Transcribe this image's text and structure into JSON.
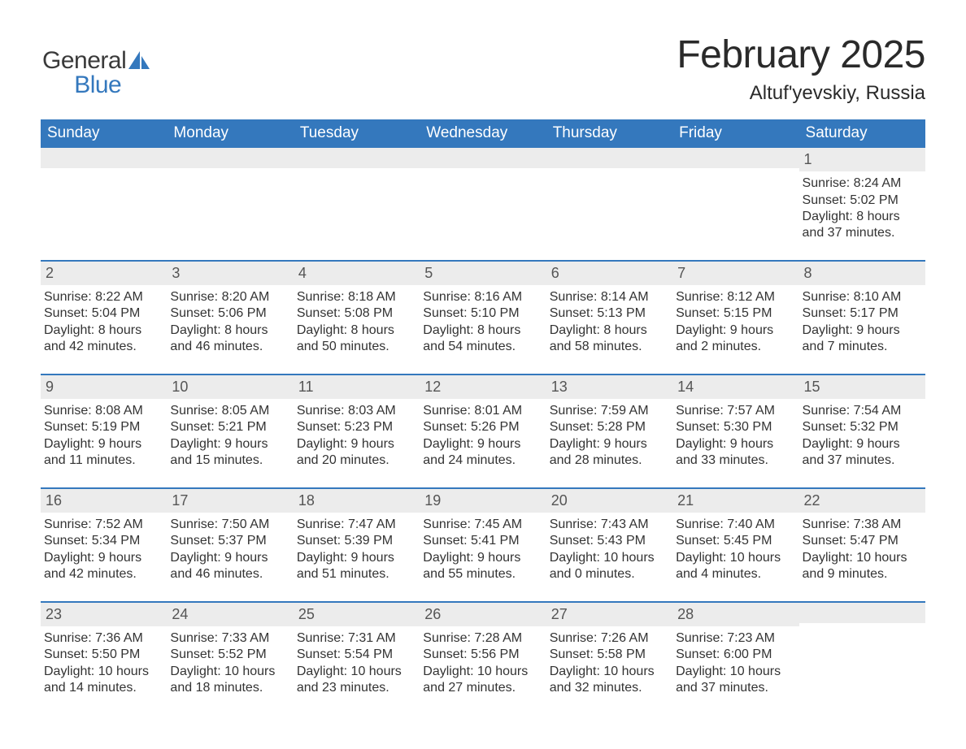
{
  "colors": {
    "brand_blue": "#3478bd",
    "header_text": "#2a2a2a",
    "body_text": "#333333",
    "muted_bg": "#ececec",
    "week_rule": "#3478bd",
    "white": "#ffffff"
  },
  "logo": {
    "word1": "General",
    "word2": "Blue"
  },
  "title": "February 2025",
  "location": "Altuf'yevskiy, Russia",
  "days_of_week": [
    "Sunday",
    "Monday",
    "Tuesday",
    "Wednesday",
    "Thursday",
    "Friday",
    "Saturday"
  ],
  "weeks": [
    [
      {
        "day": "",
        "lines": []
      },
      {
        "day": "",
        "lines": []
      },
      {
        "day": "",
        "lines": []
      },
      {
        "day": "",
        "lines": []
      },
      {
        "day": "",
        "lines": []
      },
      {
        "day": "",
        "lines": []
      },
      {
        "day": "1",
        "lines": [
          "Sunrise: 8:24 AM",
          "Sunset: 5:02 PM",
          "Daylight: 8 hours",
          "and 37 minutes."
        ]
      }
    ],
    [
      {
        "day": "2",
        "lines": [
          "Sunrise: 8:22 AM",
          "Sunset: 5:04 PM",
          "Daylight: 8 hours",
          "and 42 minutes."
        ]
      },
      {
        "day": "3",
        "lines": [
          "Sunrise: 8:20 AM",
          "Sunset: 5:06 PM",
          "Daylight: 8 hours",
          "and 46 minutes."
        ]
      },
      {
        "day": "4",
        "lines": [
          "Sunrise: 8:18 AM",
          "Sunset: 5:08 PM",
          "Daylight: 8 hours",
          "and 50 minutes."
        ]
      },
      {
        "day": "5",
        "lines": [
          "Sunrise: 8:16 AM",
          "Sunset: 5:10 PM",
          "Daylight: 8 hours",
          "and 54 minutes."
        ]
      },
      {
        "day": "6",
        "lines": [
          "Sunrise: 8:14 AM",
          "Sunset: 5:13 PM",
          "Daylight: 8 hours",
          "and 58 minutes."
        ]
      },
      {
        "day": "7",
        "lines": [
          "Sunrise: 8:12 AM",
          "Sunset: 5:15 PM",
          "Daylight: 9 hours",
          "and 2 minutes."
        ]
      },
      {
        "day": "8",
        "lines": [
          "Sunrise: 8:10 AM",
          "Sunset: 5:17 PM",
          "Daylight: 9 hours",
          "and 7 minutes."
        ]
      }
    ],
    [
      {
        "day": "9",
        "lines": [
          "Sunrise: 8:08 AM",
          "Sunset: 5:19 PM",
          "Daylight: 9 hours",
          "and 11 minutes."
        ]
      },
      {
        "day": "10",
        "lines": [
          "Sunrise: 8:05 AM",
          "Sunset: 5:21 PM",
          "Daylight: 9 hours",
          "and 15 minutes."
        ]
      },
      {
        "day": "11",
        "lines": [
          "Sunrise: 8:03 AM",
          "Sunset: 5:23 PM",
          "Daylight: 9 hours",
          "and 20 minutes."
        ]
      },
      {
        "day": "12",
        "lines": [
          "Sunrise: 8:01 AM",
          "Sunset: 5:26 PM",
          "Daylight: 9 hours",
          "and 24 minutes."
        ]
      },
      {
        "day": "13",
        "lines": [
          "Sunrise: 7:59 AM",
          "Sunset: 5:28 PM",
          "Daylight: 9 hours",
          "and 28 minutes."
        ]
      },
      {
        "day": "14",
        "lines": [
          "Sunrise: 7:57 AM",
          "Sunset: 5:30 PM",
          "Daylight: 9 hours",
          "and 33 minutes."
        ]
      },
      {
        "day": "15",
        "lines": [
          "Sunrise: 7:54 AM",
          "Sunset: 5:32 PM",
          "Daylight: 9 hours",
          "and 37 minutes."
        ]
      }
    ],
    [
      {
        "day": "16",
        "lines": [
          "Sunrise: 7:52 AM",
          "Sunset: 5:34 PM",
          "Daylight: 9 hours",
          "and 42 minutes."
        ]
      },
      {
        "day": "17",
        "lines": [
          "Sunrise: 7:50 AM",
          "Sunset: 5:37 PM",
          "Daylight: 9 hours",
          "and 46 minutes."
        ]
      },
      {
        "day": "18",
        "lines": [
          "Sunrise: 7:47 AM",
          "Sunset: 5:39 PM",
          "Daylight: 9 hours",
          "and 51 minutes."
        ]
      },
      {
        "day": "19",
        "lines": [
          "Sunrise: 7:45 AM",
          "Sunset: 5:41 PM",
          "Daylight: 9 hours",
          "and 55 minutes."
        ]
      },
      {
        "day": "20",
        "lines": [
          "Sunrise: 7:43 AM",
          "Sunset: 5:43 PM",
          "Daylight: 10 hours",
          "and 0 minutes."
        ]
      },
      {
        "day": "21",
        "lines": [
          "Sunrise: 7:40 AM",
          "Sunset: 5:45 PM",
          "Daylight: 10 hours",
          "and 4 minutes."
        ]
      },
      {
        "day": "22",
        "lines": [
          "Sunrise: 7:38 AM",
          "Sunset: 5:47 PM",
          "Daylight: 10 hours",
          "and 9 minutes."
        ]
      }
    ],
    [
      {
        "day": "23",
        "lines": [
          "Sunrise: 7:36 AM",
          "Sunset: 5:50 PM",
          "Daylight: 10 hours",
          "and 14 minutes."
        ]
      },
      {
        "day": "24",
        "lines": [
          "Sunrise: 7:33 AM",
          "Sunset: 5:52 PM",
          "Daylight: 10 hours",
          "and 18 minutes."
        ]
      },
      {
        "day": "25",
        "lines": [
          "Sunrise: 7:31 AM",
          "Sunset: 5:54 PM",
          "Daylight: 10 hours",
          "and 23 minutes."
        ]
      },
      {
        "day": "26",
        "lines": [
          "Sunrise: 7:28 AM",
          "Sunset: 5:56 PM",
          "Daylight: 10 hours",
          "and 27 minutes."
        ]
      },
      {
        "day": "27",
        "lines": [
          "Sunrise: 7:26 AM",
          "Sunset: 5:58 PM",
          "Daylight: 10 hours",
          "and 32 minutes."
        ]
      },
      {
        "day": "28",
        "lines": [
          "Sunrise: 7:23 AM",
          "Sunset: 6:00 PM",
          "Daylight: 10 hours",
          "and 37 minutes."
        ]
      },
      {
        "day": "",
        "lines": []
      }
    ]
  ]
}
